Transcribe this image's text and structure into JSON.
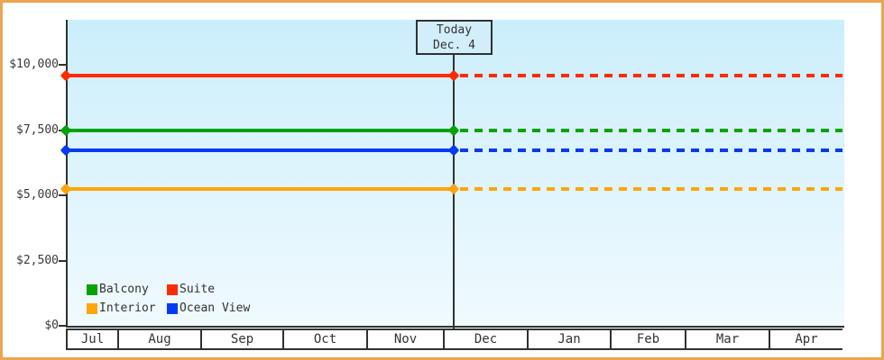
{
  "chart_data": {
    "type": "line",
    "title": "",
    "x_axis": {
      "categories": [
        "Jul",
        "Aug",
        "Sep",
        "Oct",
        "Nov",
        "Dec",
        "Jan",
        "Feb",
        "Mar",
        "Apr"
      ]
    },
    "y_axis": {
      "ticks": [
        {
          "label": "$0",
          "value": 0
        },
        {
          "label": "$2,500",
          "value": 2500
        },
        {
          "label": "$5,000",
          "value": 5000
        },
        {
          "label": "$7,500",
          "value": 7500
        },
        {
          "label": "$10,000",
          "value": 10000
        }
      ],
      "range": [
        0,
        11700
      ]
    },
    "annotation": {
      "title": "Today",
      "subtitle": "Dec. 4"
    },
    "series": [
      {
        "name": "Suite",
        "value": 9600,
        "color": "#ff2b00"
      },
      {
        "name": "Balcony",
        "value": 7500,
        "color": "#00a302"
      },
      {
        "name": "Ocean View",
        "value": 6750,
        "color": "#063af2"
      },
      {
        "name": "Interior",
        "value": 5250,
        "color": "#ffa50c"
      }
    ],
    "line_style": {
      "before_today": "solid",
      "after_today": "dashed"
    },
    "legend": {
      "position": "bottom-left",
      "items": [
        "Balcony",
        "Suite",
        "Interior",
        "Ocean View"
      ]
    },
    "palette": {
      "frame_border": "#eaa551",
      "plot_top": "#cbeefb",
      "plot_bottom": "#f0fafe",
      "annotation_bg": "#d2eefa",
      "axis": "#2e3233"
    }
  }
}
